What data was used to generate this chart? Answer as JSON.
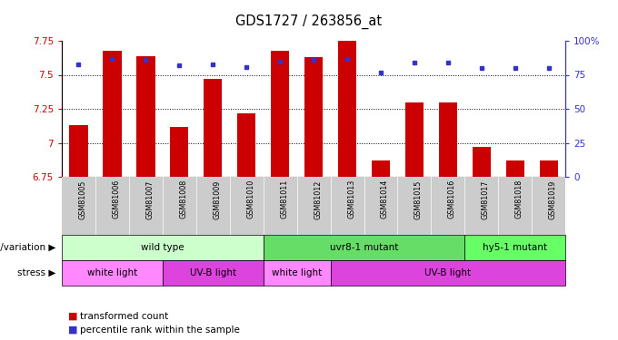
{
  "title": "GDS1727 / 263856_at",
  "samples": [
    "GSM81005",
    "GSM81006",
    "GSM81007",
    "GSM81008",
    "GSM81009",
    "GSM81010",
    "GSM81011",
    "GSM81012",
    "GSM81013",
    "GSM81014",
    "GSM81015",
    "GSM81016",
    "GSM81017",
    "GSM81018",
    "GSM81019"
  ],
  "bar_values": [
    7.13,
    7.68,
    7.64,
    7.12,
    7.47,
    7.22,
    7.68,
    7.63,
    7.77,
    6.87,
    7.3,
    7.3,
    6.97,
    6.87,
    6.87
  ],
  "dot_values": [
    83,
    87,
    86,
    82,
    83,
    81,
    85,
    86,
    87,
    77,
    84,
    84,
    80,
    80,
    80
  ],
  "ylim_left": [
    6.75,
    7.75
  ],
  "ylim_right": [
    0,
    100
  ],
  "yticks_left": [
    6.75,
    7.0,
    7.25,
    7.5,
    7.75
  ],
  "yticks_right": [
    0,
    25,
    50,
    75,
    100
  ],
  "ytick_labels_left": [
    "6.75",
    "7",
    "7.25",
    "7.5",
    "7.75"
  ],
  "ytick_labels_right": [
    "0",
    "25",
    "50",
    "75",
    "100%"
  ],
  "bar_color": "#cc0000",
  "dot_color": "#3333cc",
  "bar_width": 0.55,
  "genotype_groups": [
    {
      "label": "wild type",
      "start": 0,
      "end": 5,
      "color": "#ccffcc"
    },
    {
      "label": "uvr8-1 mutant",
      "start": 6,
      "end": 11,
      "color": "#66dd66"
    },
    {
      "label": "hy5-1 mutant",
      "start": 12,
      "end": 14,
      "color": "#66ff66"
    }
  ],
  "stress_groups": [
    {
      "label": "white light",
      "start": 0,
      "end": 2,
      "color": "#ff88ff"
    },
    {
      "label": "UV-B light",
      "start": 3,
      "end": 5,
      "color": "#dd44dd"
    },
    {
      "label": "white light",
      "start": 6,
      "end": 7,
      "color": "#ff88ff"
    },
    {
      "label": "UV-B light",
      "start": 8,
      "end": 14,
      "color": "#dd44dd"
    }
  ],
  "legend_items": [
    {
      "label": "transformed count",
      "color": "#cc0000"
    },
    {
      "label": "percentile rank within the sample",
      "color": "#3333cc"
    }
  ],
  "left_axis_color": "#cc0000",
  "right_axis_color": "#3333cc",
  "hgrid_values": [
    7.0,
    7.25,
    7.5
  ],
  "row_label_genotype": "genotype/variation",
  "row_label_stress": "stress"
}
